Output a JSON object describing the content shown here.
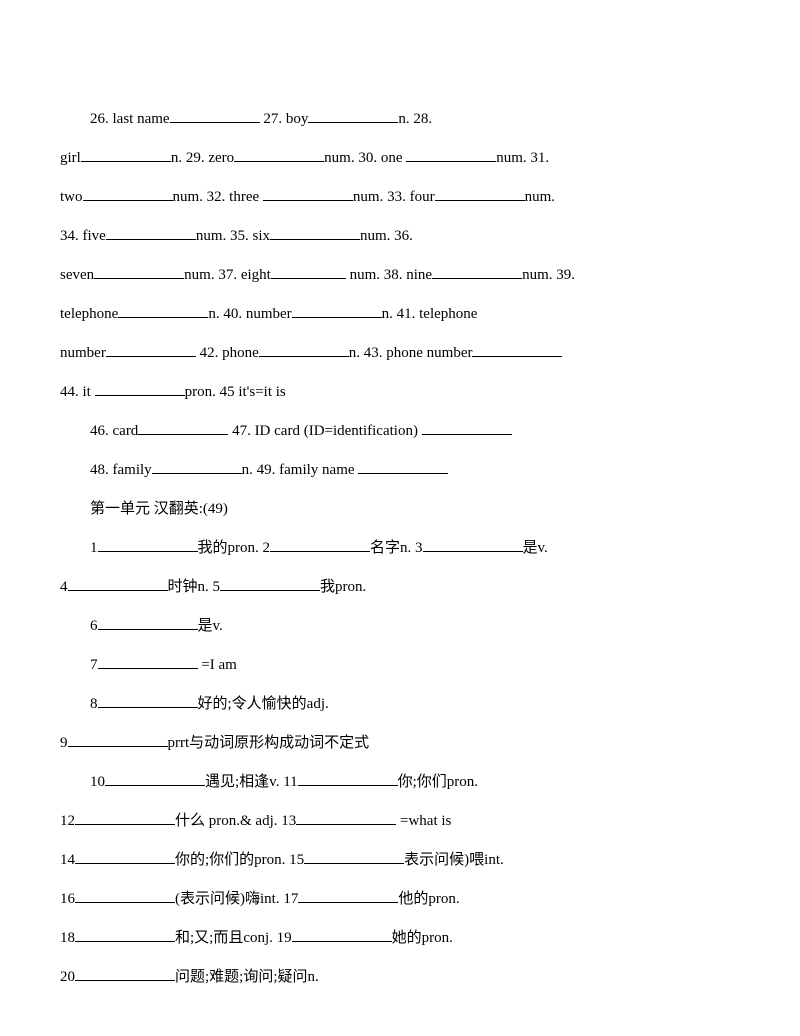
{
  "doc": {
    "bg_color": "#ffffff",
    "text_color": "#000000",
    "font_family": "SimSun",
    "font_size_pt": 11,
    "line_height": 2.6
  },
  "p": {
    "l1a": "26. last name",
    "l1b": " 27. boy",
    "l1c": "n. 28.",
    "l2a": "girl",
    "l2b": "n. 29. zero",
    "l2c": "num. 30. one ",
    "l2d": "num. 31.",
    "l3a": "two",
    "l3b": "num. 32. three ",
    "l3c": "num. 33. four",
    "l3d": "num.",
    "l4a": "34. five",
    "l4b": "num. 35. six",
    "l4c": "num. 36.",
    "l5a": "seven",
    "l5b": "num. 37. eight",
    "l5c": " num. 38. nine",
    "l5d": "num. 39.",
    "l6a": "telephone",
    "l6b": "n. 40. number",
    "l6c": "n. 41. telephone",
    "l7a": "number",
    "l7b": " 42. phone",
    "l7c": "n. 43. phone number",
    "l8a": "44. it ",
    "l8b": "pron. 45 it's=it is",
    "l9a": "46. card",
    "l9b": " 47. ID card (ID=identification) ",
    "l10a": "48. family",
    "l10b": "n. 49. family name ",
    "l11": "第一单元 汉翻英:(49)",
    "l12a": "1",
    "l12b": "我的pron. 2",
    "l12c": "名字n. 3",
    "l12d": "是v.",
    "l13a": "4",
    "l13b": "时钟n. 5",
    "l13c": "我pron.",
    "l14a": "6",
    "l14b": "是v.",
    "l15a": "7",
    "l15b": " =I am",
    "l16a": "8",
    "l16b": "好的;令人愉快的adj.",
    "l17a": "9",
    "l17b": "prrt与动词原形构成动词不定式",
    "l18a": "10",
    "l18b": "遇见;相逢v. 11",
    "l18c": "你;你们pron.",
    "l19a": "12",
    "l19b": "什么 pron.& adj. 13",
    "l19c": " =what is",
    "l20a": "14",
    "l20b": "你的;你们的pron. 15",
    "l20c": "表示问候)喂int.",
    "l21a": "16",
    "l21b": "(表示问候)嗨int. 17",
    "l21c": "他的pron.",
    "l22a": "18",
    "l22b": "和;又;而且conj. 19",
    "l22c": "她的pron.",
    "l23a": "20",
    "l23b": "问题;难题;询问;疑问n."
  }
}
